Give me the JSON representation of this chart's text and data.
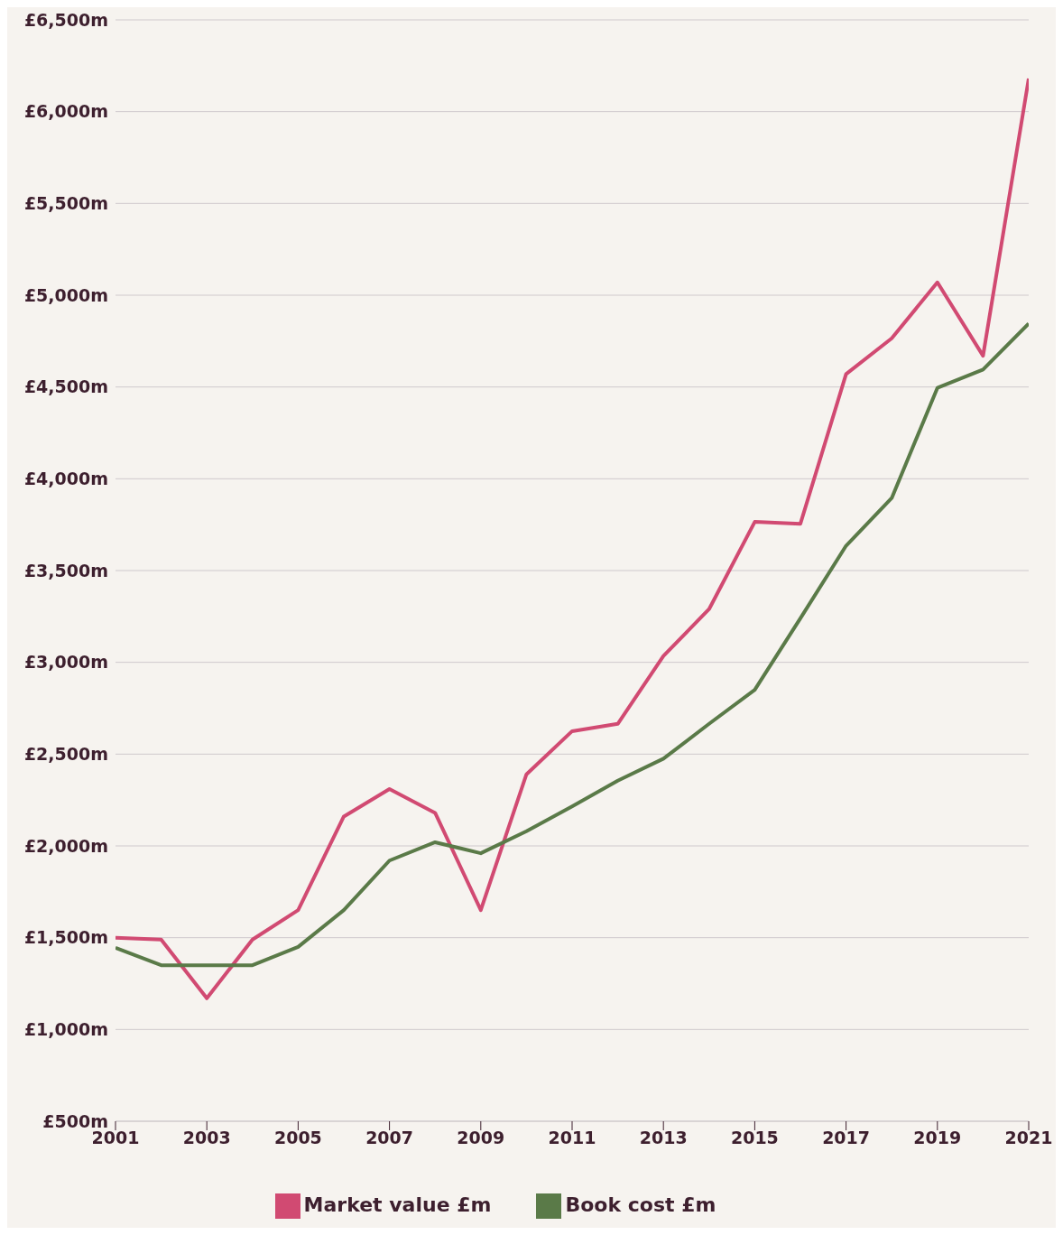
{
  "chart_data": {
    "type": "line",
    "x": [
      2001,
      2002,
      2003,
      2004,
      2005,
      2006,
      2007,
      2008,
      2009,
      2010,
      2011,
      2012,
      2013,
      2014,
      2015,
      2016,
      2017,
      2018,
      2019,
      2020,
      2021
    ],
    "series": [
      {
        "name": "Market value £m",
        "color": "#d14a72",
        "values": [
          1500,
          1490,
          1170,
          1490,
          1650,
          2160,
          2310,
          2180,
          1650,
          2390,
          2625,
          2665,
          3035,
          3290,
          3765,
          3755,
          4570,
          4765,
          5070,
          4670,
          6180
        ]
      },
      {
        "name": "Book cost £m",
        "color": "#5a7a48",
        "values": [
          1445,
          1350,
          1350,
          1350,
          1450,
          1650,
          1920,
          2020,
          1960,
          2080,
          2215,
          2355,
          2475,
          2665,
          2850,
          3240,
          3635,
          3895,
          4495,
          4595,
          4845
        ]
      }
    ],
    "xlim": [
      2001,
      2021
    ],
    "xticks": [
      2001,
      2003,
      2005,
      2007,
      2009,
      2011,
      2013,
      2015,
      2017,
      2019,
      2021
    ],
    "ylim": [
      500,
      6500
    ],
    "yticks": [
      {
        "value": 500,
        "label": "£500m"
      },
      {
        "value": 1000,
        "label": "£1,000m"
      },
      {
        "value": 1500,
        "label": "£1,500m"
      },
      {
        "value": 2000,
        "label": "£2,000m"
      },
      {
        "value": 2500,
        "label": "£2,500m"
      },
      {
        "value": 3000,
        "label": "£3,000m"
      },
      {
        "value": 3500,
        "label": "£3,500m"
      },
      {
        "value": 4000,
        "label": "£4,000m"
      },
      {
        "value": 4500,
        "label": "£4,500m"
      },
      {
        "value": 5000,
        "label": "£5,000m"
      },
      {
        "value": 5500,
        "label": "£5,500m"
      },
      {
        "value": 6000,
        "label": "£6,000m"
      },
      {
        "value": 6500,
        "label": "£6,500m"
      }
    ],
    "grid": "y",
    "legend": "bottom",
    "marker": "none",
    "line_style": "solid"
  }
}
